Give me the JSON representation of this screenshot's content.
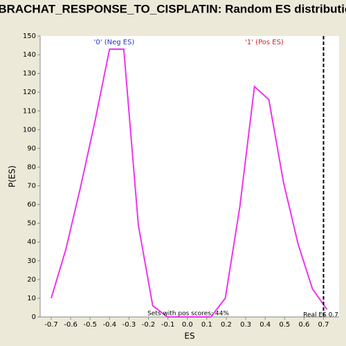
{
  "chart_data": {
    "type": "line",
    "title": "BRACHAT_RESPONSE_TO_CISPLATIN: Random ES distribution",
    "x_label": "ES",
    "y_label": "P(ES)",
    "x": [
      -0.7,
      -0.625,
      -0.55,
      -0.476,
      -0.4,
      -0.327,
      -0.252,
      -0.178,
      -0.103,
      -0.028,
      0.046,
      0.121,
      0.195,
      0.27,
      0.345,
      0.419,
      0.494,
      0.569,
      0.643,
      0.718
    ],
    "series": [
      {
        "color": "#ee33ee",
        "values": [
          10,
          36,
          69,
          104,
          143,
          143,
          49,
          6,
          0,
          0,
          0,
          0,
          10,
          59,
          123,
          116,
          72,
          39,
          15,
          4
        ]
      }
    ],
    "xlim": [
      -0.757,
      0.78
    ],
    "ylim": [
      0,
      150
    ],
    "xticks": [
      -0.7,
      -0.6,
      -0.5,
      -0.4,
      -0.3,
      -0.2,
      -0.1,
      {
        "value": 0,
        "label": "0.0"
      },
      0.1,
      0.2,
      0.3,
      0.4,
      0.5,
      0.6,
      0.7
    ],
    "yticks": [
      0,
      10,
      20,
      30,
      40,
      50,
      60,
      70,
      80,
      90,
      100,
      110,
      120,
      130,
      140,
      150
    ],
    "real_es": 0.7,
    "annotations": {
      "neg": "'0' (Neg ES)",
      "pos": "'1' (Pos ES)",
      "pos_share": "Sets with pos scores: 44%",
      "real_es": "Real ES 0.7"
    }
  }
}
